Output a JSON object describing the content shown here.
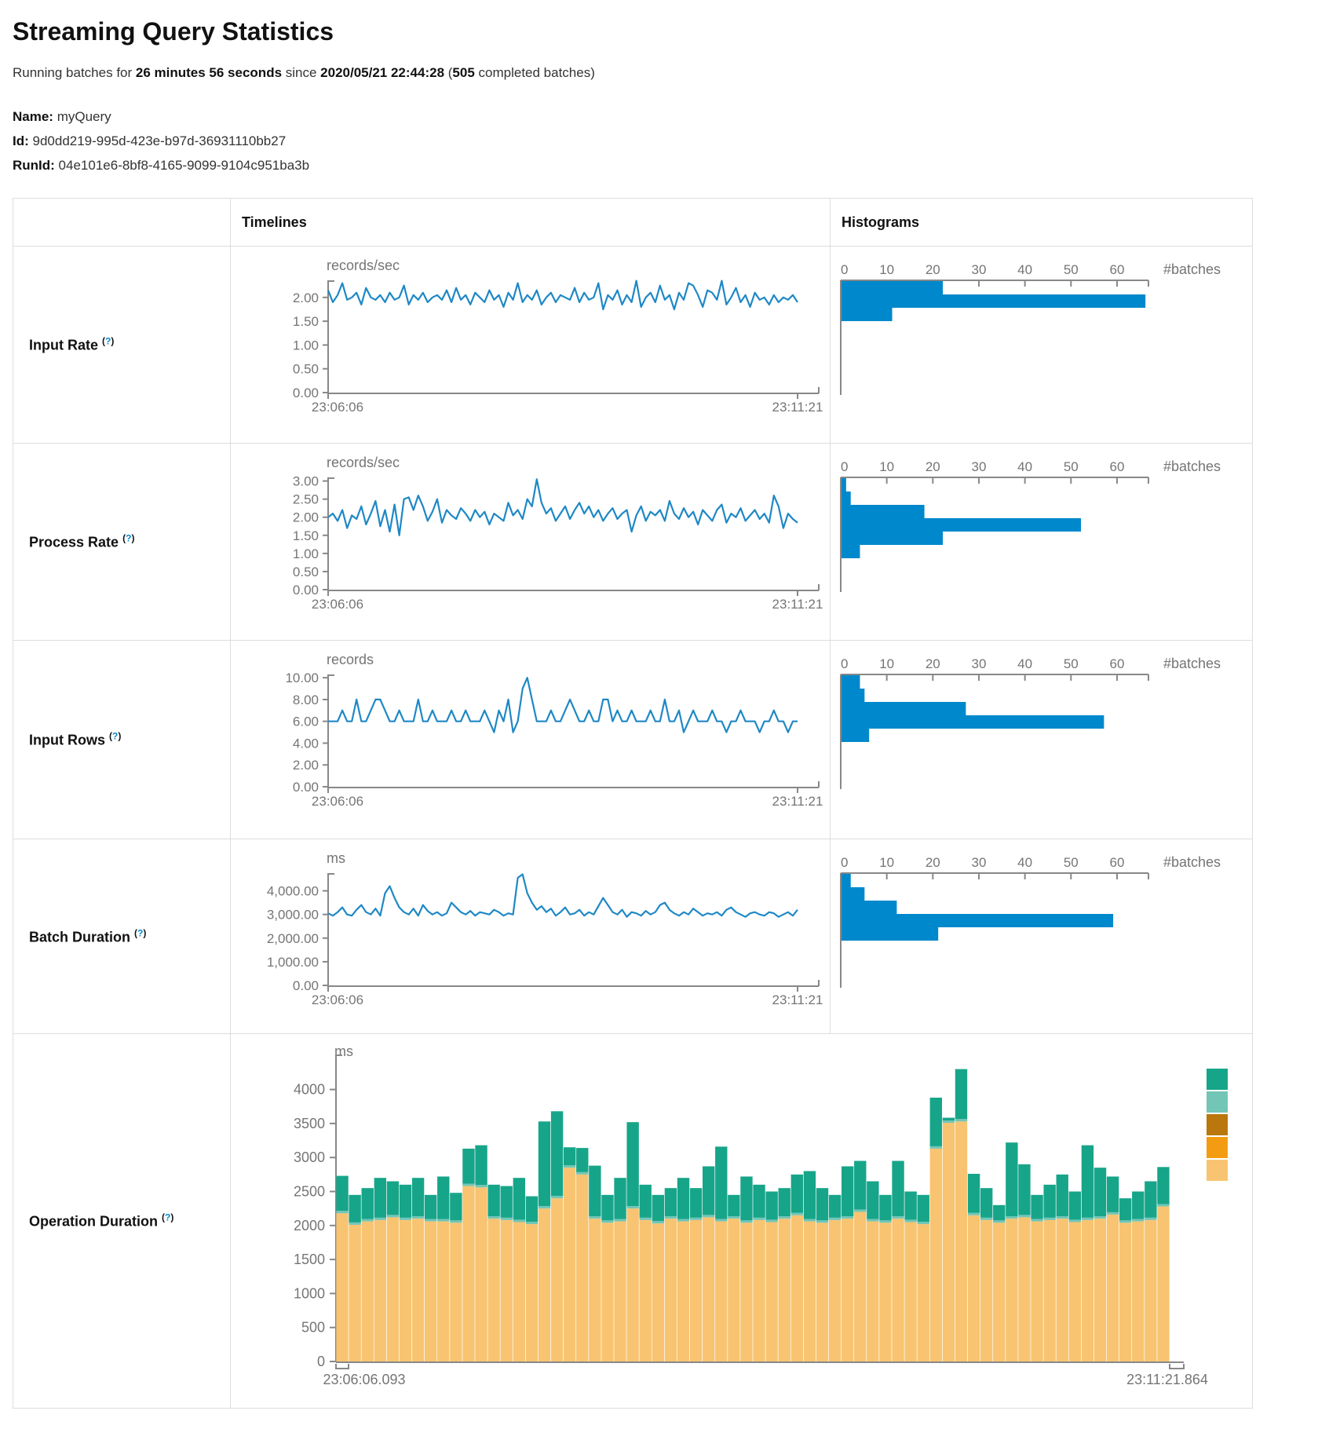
{
  "page": {
    "title": "Streaming Query Statistics",
    "subtitle": {
      "prefix": "Running batches for ",
      "duration": "26 minutes 56 seconds",
      "mid": " since ",
      "start_time": "2020/05/21 22:44:28",
      "open_paren": " (",
      "batches": "505",
      "suffix": " completed batches)"
    },
    "meta": [
      {
        "label": "Name:",
        "value": " myQuery"
      },
      {
        "label": "Id:",
        "value": " 9d0dd219-995d-423e-b97d-36931110bb27"
      },
      {
        "label": "RunId:",
        "value": " 04e101e6-8bf8-4165-9099-9104c951ba3b"
      }
    ],
    "help_marker": {
      "open": "(",
      "q": "?",
      "close": ")"
    }
  },
  "table": {
    "header_timelines": "Timelines",
    "header_histograms": "Histograms"
  },
  "colors": {
    "line_blue": "#1E88C5",
    "bar_blue": "#0088CC",
    "axis": "#888888",
    "tick_text": "#757575",
    "border": "#DDDDDD",
    "help": "#0088CC",
    "stack": [
      "#17A589",
      "#73C6B6",
      "#B9770E",
      "#F39C12",
      "#F8C471"
    ]
  },
  "chart_data": [
    {
      "id": "input-rate",
      "row_label": "Input Rate",
      "type": "line",
      "unit": "records/sec",
      "x_start": "23:06:06",
      "x_end": "23:11:21",
      "y_top": 2.36,
      "yticks": [
        {
          "v": 2.0,
          "label": "2.00"
        },
        {
          "v": 1.5,
          "label": "1.50"
        },
        {
          "v": 1.0,
          "label": "1.00"
        },
        {
          "v": 0.5,
          "label": "0.50"
        },
        {
          "v": 0.0,
          "label": "0.00"
        }
      ],
      "values": [
        2.15,
        1.9,
        2.05,
        2.3,
        1.95,
        2.0,
        2.1,
        1.85,
        2.2,
        2.0,
        1.95,
        2.05,
        1.9,
        2.1,
        1.95,
        2.0,
        2.25,
        1.85,
        2.05,
        1.95,
        2.1,
        1.9,
        2.0,
        2.05,
        1.95,
        2.15,
        1.9,
        2.2,
        1.95,
        2.05,
        1.85,
        2.1,
        2.0,
        1.9,
        2.15,
        1.95,
        2.05,
        1.8,
        2.1,
        1.95,
        2.3,
        1.9,
        2.05,
        1.95,
        2.15,
        1.85,
        2.0,
        2.1,
        1.9,
        2.05,
        2.0,
        1.95,
        2.2,
        1.9,
        2.1,
        1.95,
        2.0,
        2.3,
        1.75,
        2.05,
        1.95,
        2.15,
        1.85,
        2.05,
        1.9,
        2.35,
        1.8,
        2.0,
        2.1,
        1.9,
        2.25,
        1.95,
        2.05,
        1.75,
        2.1,
        1.95,
        2.3,
        2.25,
        2.05,
        1.8,
        2.15,
        2.1,
        1.95,
        2.35,
        1.85,
        2.0,
        2.2,
        1.9,
        2.05,
        1.8,
        2.1,
        1.95,
        2.0,
        1.85,
        2.05,
        1.9,
        2.0,
        1.95,
        2.05,
        1.9
      ],
      "histogram": {
        "unit": "#batches",
        "ticks": [
          0,
          10,
          20,
          30,
          40,
          50,
          60
        ],
        "bins": [
          22,
          66,
          11
        ]
      }
    },
    {
      "id": "process-rate",
      "row_label": "Process Rate",
      "type": "line",
      "unit": "records/sec",
      "x_start": "23:06:06",
      "x_end": "23:11:21",
      "y_top": 3.1,
      "yticks": [
        {
          "v": 3.0,
          "label": "3.00"
        },
        {
          "v": 2.5,
          "label": "2.50"
        },
        {
          "v": 2.0,
          "label": "2.00"
        },
        {
          "v": 1.5,
          "label": "1.50"
        },
        {
          "v": 1.0,
          "label": "1.00"
        },
        {
          "v": 0.5,
          "label": "0.50"
        },
        {
          "v": 0.0,
          "label": "0.00"
        }
      ],
      "values": [
        2.0,
        2.1,
        1.9,
        2.2,
        1.7,
        2.05,
        1.95,
        2.3,
        1.8,
        2.1,
        2.45,
        1.75,
        2.2,
        1.6,
        2.35,
        1.5,
        2.5,
        2.55,
        2.2,
        2.6,
        2.3,
        1.9,
        2.15,
        2.5,
        1.85,
        2.2,
        2.05,
        1.95,
        2.25,
        2.1,
        1.9,
        2.2,
        2.0,
        2.15,
        1.8,
        2.1,
        2.0,
        1.9,
        2.4,
        2.05,
        2.2,
        1.95,
        2.5,
        2.3,
        3.05,
        2.4,
        2.1,
        2.25,
        1.9,
        2.1,
        2.3,
        1.95,
        2.2,
        2.4,
        2.1,
        2.3,
        2.0,
        2.2,
        1.9,
        2.1,
        2.25,
        1.95,
        2.1,
        2.2,
        1.6,
        2.05,
        2.3,
        1.9,
        2.15,
        2.05,
        2.2,
        1.9,
        2.45,
        2.1,
        1.95,
        2.25,
        2.0,
        2.15,
        1.8,
        2.2,
        2.05,
        1.9,
        2.2,
        2.35,
        1.85,
        2.1,
        2.0,
        2.25,
        1.9,
        2.05,
        2.2,
        1.95,
        2.1,
        1.85,
        2.6,
        2.3,
        1.7,
        2.1,
        1.95,
        1.85
      ],
      "histogram": {
        "unit": "#batches",
        "ticks": [
          0,
          10,
          20,
          30,
          40,
          50,
          60
        ],
        "bins": [
          1,
          2,
          18,
          52,
          22,
          4
        ]
      }
    },
    {
      "id": "input-rows",
      "row_label": "Input Rows",
      "type": "line",
      "unit": "records",
      "x_start": "23:06:06",
      "x_end": "23:11:21",
      "y_top": 10.3,
      "yticks": [
        {
          "v": 10,
          "label": "10.00"
        },
        {
          "v": 8,
          "label": "8.00"
        },
        {
          "v": 6,
          "label": "6.00"
        },
        {
          "v": 4,
          "label": "4.00"
        },
        {
          "v": 2,
          "label": "2.00"
        },
        {
          "v": 0,
          "label": "0.00"
        }
      ],
      "values": [
        6,
        6,
        6,
        7,
        6,
        6,
        8,
        6,
        6,
        7,
        8,
        8,
        7,
        6,
        6,
        7,
        6,
        6,
        6,
        8,
        6,
        6,
        7,
        6,
        6,
        6,
        7,
        6,
        6,
        7,
        6,
        6,
        6,
        7,
        6,
        5,
        7,
        6,
        8,
        5,
        6,
        9,
        10,
        8,
        6,
        6,
        6,
        7,
        6,
        6,
        7,
        8,
        7,
        6,
        6,
        7,
        6,
        6,
        8,
        8,
        6,
        7,
        6,
        6,
        7,
        6,
        6,
        6,
        7,
        6,
        6,
        8,
        6,
        6,
        7,
        5,
        6,
        7,
        6,
        6,
        6,
        7,
        6,
        6,
        5,
        6,
        6,
        7,
        6,
        6,
        6,
        5,
        6,
        6,
        7,
        6,
        6,
        5,
        6,
        6
      ],
      "histogram": {
        "unit": "#batches",
        "ticks": [
          0,
          10,
          20,
          30,
          40,
          50,
          60
        ],
        "bins": [
          4,
          5,
          27,
          57,
          6
        ]
      }
    },
    {
      "id": "batch-duration",
      "row_label": "Batch Duration",
      "type": "line",
      "unit": "ms",
      "x_start": "23:06:06",
      "x_end": "23:11:21",
      "y_top": 4750,
      "yticks": [
        {
          "v": 4000,
          "label": "4,000.00"
        },
        {
          "v": 3000,
          "label": "3,000.00"
        },
        {
          "v": 2000,
          "label": "2,000.00"
        },
        {
          "v": 1000,
          "label": "1,000.00"
        },
        {
          "v": 0,
          "label": "0.00"
        }
      ],
      "values": [
        3050,
        2950,
        3100,
        3300,
        3000,
        2950,
        3200,
        3400,
        3100,
        3000,
        3250,
        2950,
        3900,
        4200,
        3700,
        3300,
        3100,
        3000,
        3250,
        2950,
        3400,
        3150,
        3000,
        3100,
        2950,
        3050,
        3500,
        3300,
        3100,
        3000,
        3150,
        2950,
        3100,
        3050,
        3000,
        3200,
        3100,
        2950,
        3050,
        3000,
        4550,
        4700,
        3900,
        3500,
        3200,
        3350,
        3100,
        3250,
        2950,
        3100,
        3300,
        3000,
        3050,
        3200,
        2950,
        3100,
        3000,
        3350,
        3700,
        3400,
        3100,
        3000,
        3200,
        2900,
        3100,
        3050,
        2950,
        3150,
        3000,
        3100,
        3400,
        3500,
        3200,
        3050,
        2950,
        3100,
        3000,
        3250,
        3100,
        2950,
        3050,
        3000,
        3100,
        2950,
        3200,
        3300,
        3100,
        3000,
        2900,
        3050,
        3100,
        3000,
        2950,
        3100,
        3050,
        2900,
        3000,
        3100,
        2950,
        3200
      ],
      "histogram": {
        "unit": "#batches",
        "ticks": [
          0,
          10,
          20,
          30,
          40,
          50,
          60
        ],
        "bins": [
          2,
          5,
          12,
          59,
          21
        ]
      }
    },
    {
      "id": "operation-duration",
      "row_label": "Operation Duration",
      "type": "stacked-bar",
      "unit": "ms",
      "x_start": "23:06:06.093",
      "x_end": "23:11:21.864",
      "y_top": 4515,
      "yticks": [
        {
          "v": 4000,
          "label": "4000"
        },
        {
          "v": 3500,
          "label": "3500"
        },
        {
          "v": 3000,
          "label": "3000"
        },
        {
          "v": 2500,
          "label": "2500"
        },
        {
          "v": 2000,
          "label": "2000"
        },
        {
          "v": 1500,
          "label": "1500"
        },
        {
          "v": 1000,
          "label": "1000"
        },
        {
          "v": 500,
          "label": "500"
        },
        {
          "v": 0,
          "label": "0"
        }
      ],
      "series": [
        {
          "id": "duration-light-orange",
          "color": "#F8C471",
          "values": [
            2180,
            2010,
            2060,
            2080,
            2120,
            2080,
            2100,
            2060,
            2060,
            2040,
            2580,
            2560,
            2100,
            2080,
            2050,
            2020,
            2250,
            2400,
            2850,
            2750,
            2100,
            2040,
            2060,
            2250,
            2080,
            2030,
            2100,
            2060,
            2080,
            2120,
            2060,
            2100,
            2040,
            2080,
            2050,
            2100,
            2150,
            2060,
            2040,
            2080,
            2100,
            2200,
            2060,
            2040,
            2100,
            2050,
            2020,
            3130,
            3510,
            3530,
            2150,
            2080,
            2040,
            2100,
            2120,
            2060,
            2080,
            2100,
            2050,
            2080,
            2100,
            2160,
            2040,
            2060,
            2080,
            2280
          ]
        },
        {
          "id": "duration-orange",
          "color": "#F39C12",
          "values_const": 0
        },
        {
          "id": "duration-dark-orange",
          "color": "#B9770E",
          "values_const": 0
        },
        {
          "id": "duration-light-teal",
          "color": "#73C6B6",
          "values_const": 35
        },
        {
          "id": "duration-teal",
          "color": "#17A589",
          "values": [
            515,
            405,
            455,
            585,
            495,
            485,
            565,
            355,
            625,
            405,
            515,
            585,
            465,
            465,
            615,
            375,
            1245,
            1245,
            265,
            355,
            745,
            375,
            605,
            1235,
            485,
            385,
            415,
            605,
            435,
            715,
            1065,
            315,
            645,
            485,
            415,
            415,
            565,
            705,
            475,
            335,
            735,
            715,
            555,
            375,
            815,
            415,
            395,
            715,
            40,
            735,
            575,
            435,
            225,
            1085,
            745,
            355,
            485,
            615,
            415,
            1065,
            715,
            525,
            325,
            405,
            535,
            545
          ]
        }
      ],
      "legend": [
        {
          "id": "duration-teal",
          "color": "#17A589"
        },
        {
          "id": "duration-light-teal",
          "color": "#73C6B6"
        },
        {
          "id": "duration-dark-orange",
          "color": "#B9770E"
        },
        {
          "id": "duration-orange",
          "color": "#F39C12"
        },
        {
          "id": "duration-light-orange",
          "color": "#F8C471"
        }
      ]
    }
  ]
}
